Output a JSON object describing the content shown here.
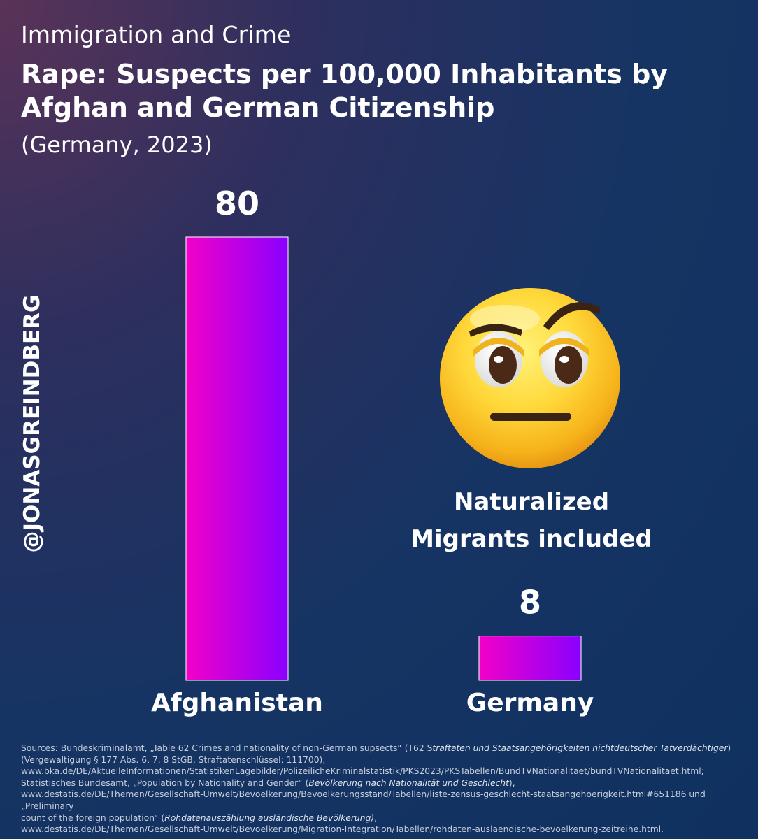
{
  "kicker": "Immigration and Crime",
  "title": "Rape: Suspects per 100,000 Inhabitants by Afghan and German Citizenship",
  "subtitle": "(Germany, 2023)",
  "handle": "@JONASGREINDBERG",
  "note": {
    "line1": "Naturalized",
    "line2": "Migrants included",
    "emoji_icon": "face-with-raised-eyebrow-icon"
  },
  "colors": {
    "bar_start": "#f200c8",
    "bar_end": "#8a00ff",
    "bar_outline": "#ffffff",
    "background_top": "#5a3358",
    "background_bottom": "#0f3160"
  },
  "chart_data": {
    "type": "bar",
    "title": "Rape: Suspects per 100,000 Inhabitants by Afghan and German Citizenship",
    "subtitle": "(Germany, 2023)",
    "categories": [
      "Afghanistan",
      "Germany"
    ],
    "values": [
      80,
      8
    ],
    "value_labels": [
      "80",
      "8"
    ],
    "xlabel": "",
    "ylabel": "",
    "ylim": [
      0,
      80
    ],
    "grid": false,
    "legend": "none",
    "annotations": [
      "Naturalized Migrants included"
    ]
  },
  "sources": {
    "l1a": "Sources: Bundeskriminalamt, „Table 62 Crimes and nationality of non-German supsects“ (T62 S",
    "l1b": "traftaten und Staatsangehörigkeiten nichtdeutscher Tatverdächtiger",
    "l1c": ")",
    "l2": "(Vergewaltigung § 177 Abs. 6, 7, 8 StGB, Straftatenschlüssel: 111700),",
    "l3": "www.bka.de/DE/AktuelleInformationen/StatistikenLagebilder/PolizeilicheKriminalstatistik/PKS2023/PKSTabellen/BundTVNationalitaet/bundTVNationalitaet.html;",
    "l4a": "Statistisches Bundesamt, „Population by Nationality and Gender“ (",
    "l4b": "Bevölkerung nach Nationalität und Geschlecht",
    "l4c": "),",
    "l5": "www.destatis.de/DE/Themen/Gesellschaft-Umwelt/Bevoelkerung/Bevoelkerungsstand/Tabellen/liste-zensus-geschlecht-staatsangehoerigkeit.html#651186 und „Preliminary",
    "l6a": "count of the foreign population“ (",
    "l6b": "Rohdatenauszählung ausländische Bevölkerung)",
    "l6c": ",",
    "l7": "www.destatis.de/DE/Themen/Gesellschaft-Umwelt/Bevoelkerung/Migration-Integration/Tabellen/rohdaten-auslaendische-bevoelkerung-zeitreihe.html."
  }
}
